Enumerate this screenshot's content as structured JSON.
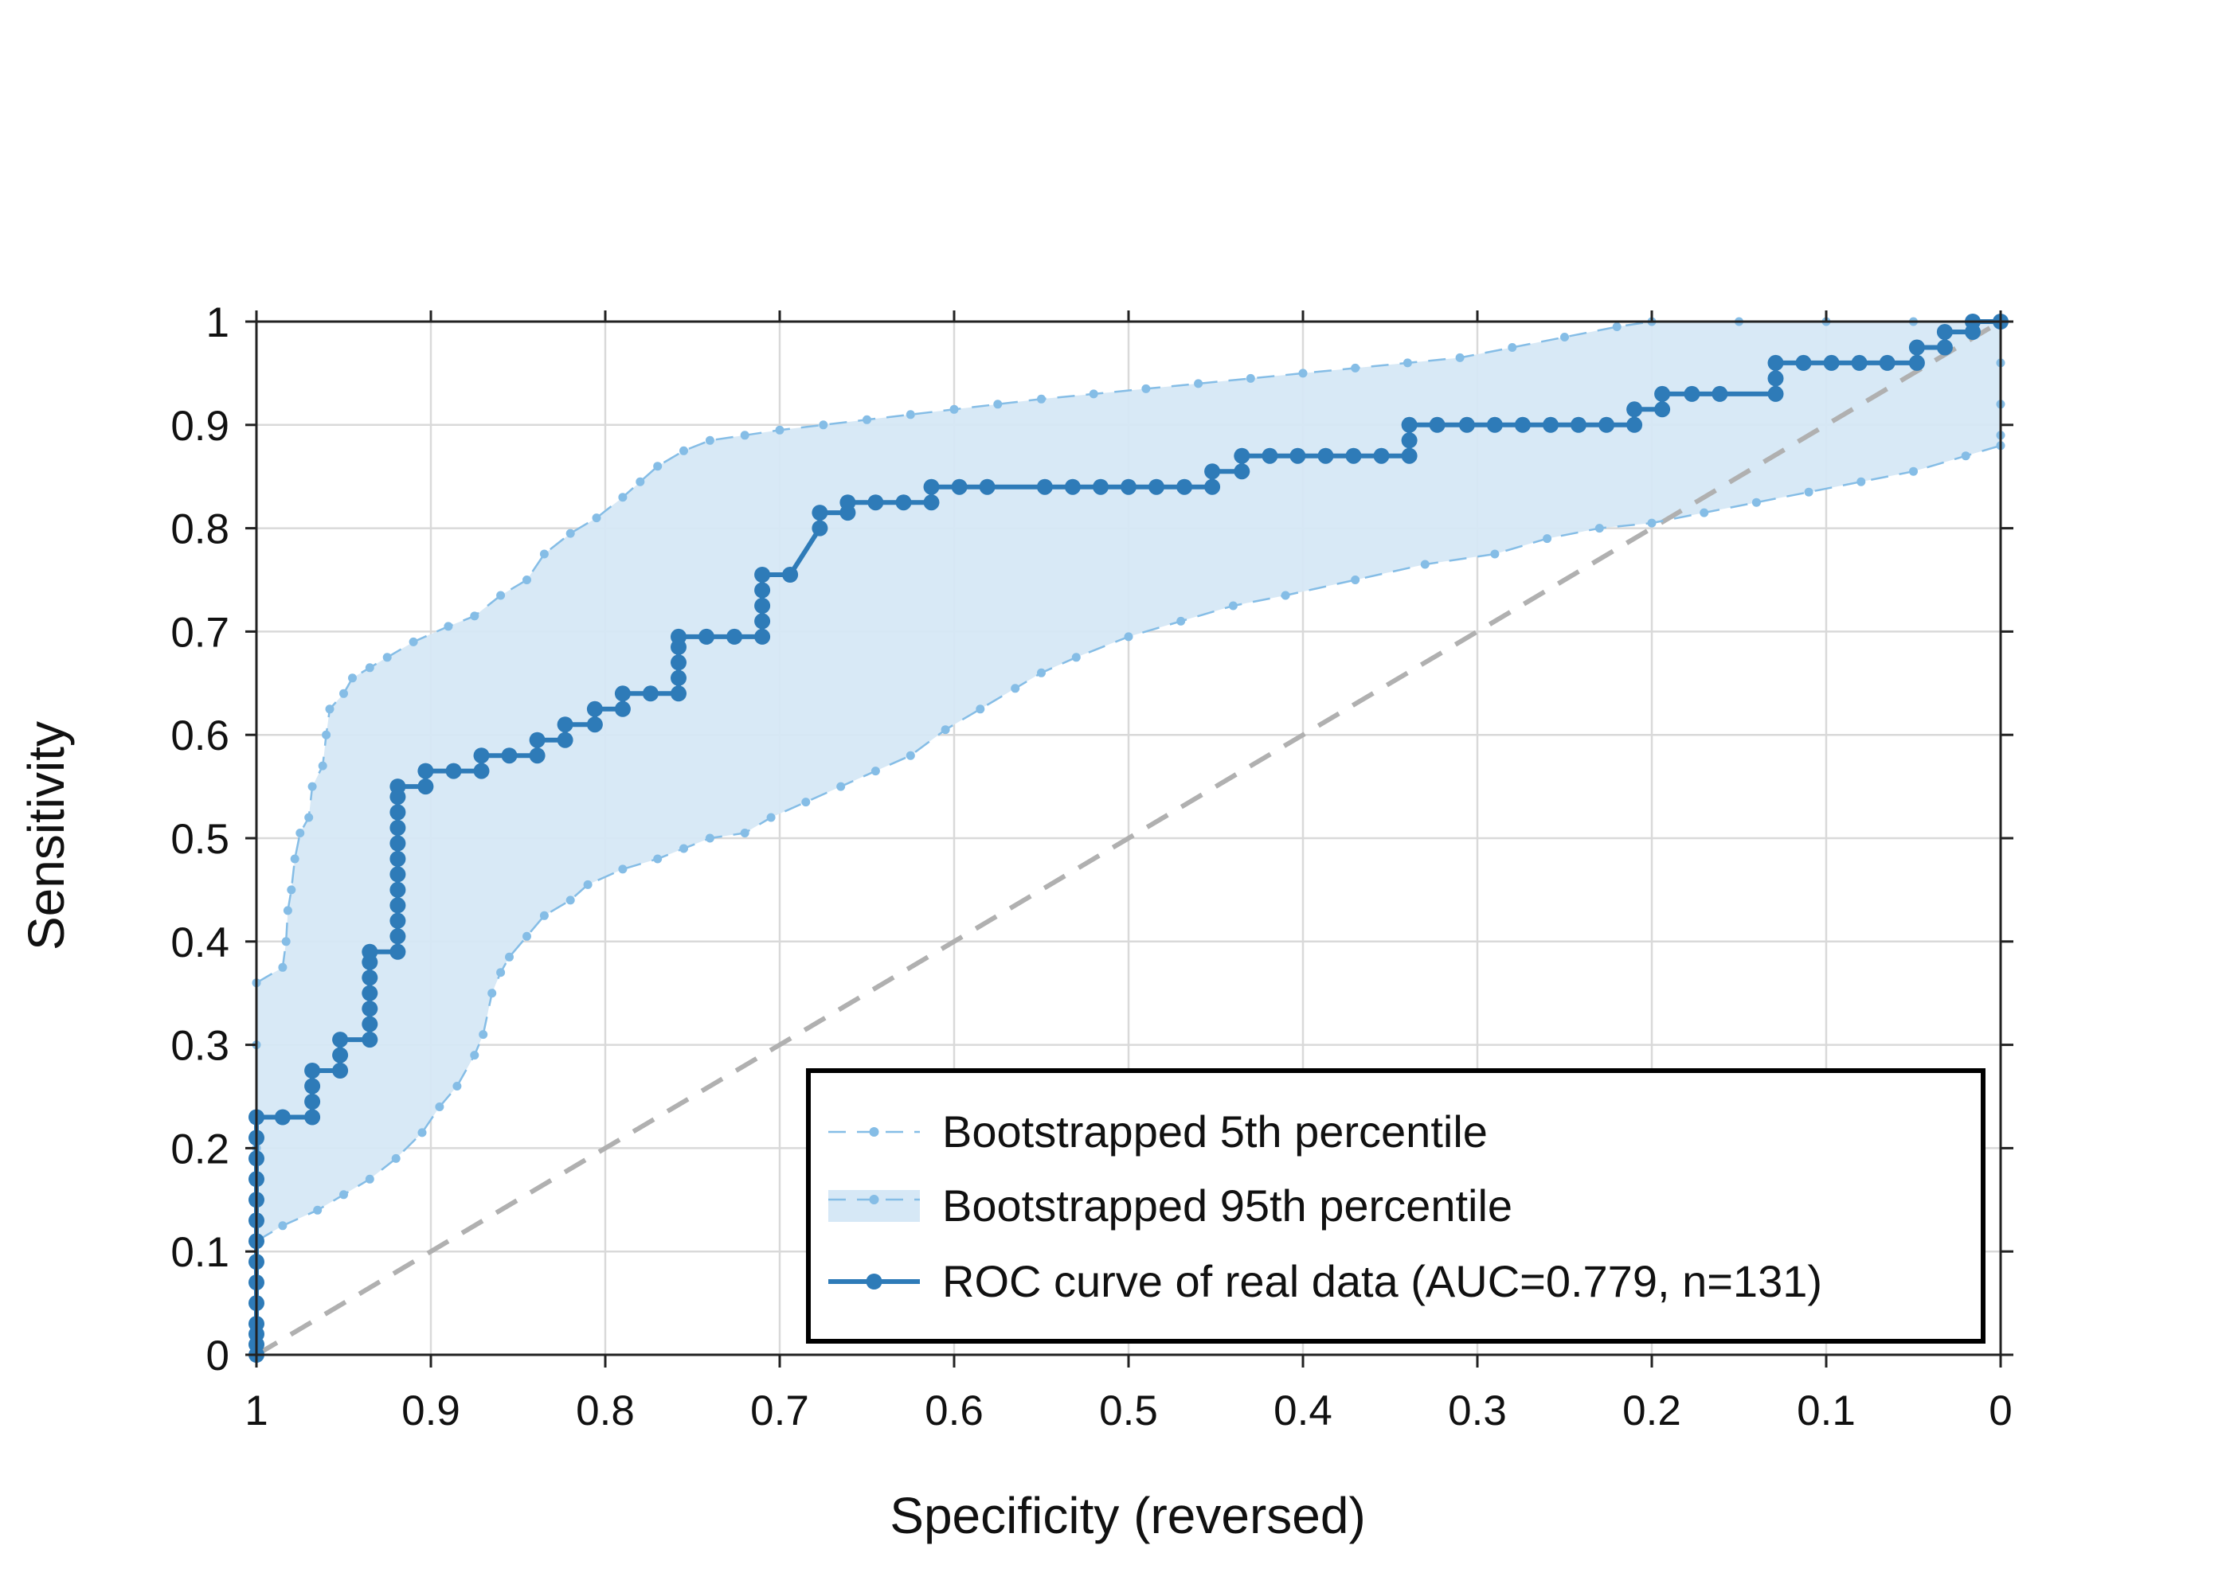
{
  "chart_data": {
    "type": "line",
    "title": "",
    "xlabel": "Specificity (reversed)",
    "ylabel": "Sensitivity",
    "xlim": [
      1,
      0
    ],
    "ylim": [
      0,
      1
    ],
    "x_reversed": true,
    "grid": true,
    "legend_placement": "bottom-right",
    "x_ticks": [
      "1",
      "0.9",
      "0.8",
      "0.7",
      "0.6",
      "0.5",
      "0.4",
      "0.3",
      "0.2",
      "0.1",
      "0"
    ],
    "y_ticks": [
      "0",
      "0.1",
      "0.2",
      "0.3",
      "0.4",
      "0.5",
      "0.6",
      "0.7",
      "0.8",
      "0.9",
      "1"
    ],
    "colors": {
      "roc": "#2e7bb8",
      "band_line": "#85bde6",
      "band_fill": "#d6e8f6",
      "diagonal": "#b0b0b0",
      "grid": "#d9d9d9"
    },
    "series": [
      {
        "name": "Bootstrapped 5th percentile",
        "points": [
          [
            1.0,
            0.0
          ],
          [
            1.0,
            0.11
          ],
          [
            0.985,
            0.125
          ],
          [
            0.965,
            0.14
          ],
          [
            0.95,
            0.155
          ],
          [
            0.935,
            0.17
          ],
          [
            0.92,
            0.19
          ],
          [
            0.905,
            0.215
          ],
          [
            0.895,
            0.24
          ],
          [
            0.885,
            0.26
          ],
          [
            0.875,
            0.29
          ],
          [
            0.87,
            0.31
          ],
          [
            0.865,
            0.35
          ],
          [
            0.86,
            0.37
          ],
          [
            0.855,
            0.385
          ],
          [
            0.845,
            0.405
          ],
          [
            0.835,
            0.425
          ],
          [
            0.82,
            0.44
          ],
          [
            0.81,
            0.455
          ],
          [
            0.79,
            0.47
          ],
          [
            0.77,
            0.48
          ],
          [
            0.755,
            0.49
          ],
          [
            0.74,
            0.5
          ],
          [
            0.72,
            0.505
          ],
          [
            0.705,
            0.52
          ],
          [
            0.685,
            0.535
          ],
          [
            0.665,
            0.55
          ],
          [
            0.645,
            0.565
          ],
          [
            0.625,
            0.58
          ],
          [
            0.605,
            0.605
          ],
          [
            0.585,
            0.625
          ],
          [
            0.565,
            0.645
          ],
          [
            0.55,
            0.66
          ],
          [
            0.53,
            0.675
          ],
          [
            0.5,
            0.695
          ],
          [
            0.47,
            0.71
          ],
          [
            0.44,
            0.725
          ],
          [
            0.41,
            0.735
          ],
          [
            0.37,
            0.75
          ],
          [
            0.33,
            0.765
          ],
          [
            0.29,
            0.775
          ],
          [
            0.26,
            0.79
          ],
          [
            0.23,
            0.8
          ],
          [
            0.2,
            0.805
          ],
          [
            0.17,
            0.815
          ],
          [
            0.14,
            0.825
          ],
          [
            0.11,
            0.835
          ],
          [
            0.08,
            0.845
          ],
          [
            0.05,
            0.855
          ],
          [
            0.02,
            0.87
          ],
          [
            0.0,
            0.88
          ],
          [
            0.0,
            0.89
          ],
          [
            0.0,
            0.92
          ],
          [
            0.0,
            0.96
          ],
          [
            0.0,
            1.0
          ]
        ]
      },
      {
        "name": "Bootstrapped 95th percentile",
        "points": [
          [
            1.0,
            0.0
          ],
          [
            1.0,
            0.2
          ],
          [
            1.0,
            0.3
          ],
          [
            1.0,
            0.36
          ],
          [
            0.985,
            0.375
          ],
          [
            0.983,
            0.4
          ],
          [
            0.982,
            0.43
          ],
          [
            0.98,
            0.45
          ],
          [
            0.978,
            0.48
          ],
          [
            0.975,
            0.505
          ],
          [
            0.97,
            0.52
          ],
          [
            0.968,
            0.55
          ],
          [
            0.962,
            0.57
          ],
          [
            0.96,
            0.6
          ],
          [
            0.958,
            0.625
          ],
          [
            0.95,
            0.64
          ],
          [
            0.945,
            0.655
          ],
          [
            0.935,
            0.665
          ],
          [
            0.925,
            0.675
          ],
          [
            0.91,
            0.69
          ],
          [
            0.89,
            0.705
          ],
          [
            0.875,
            0.715
          ],
          [
            0.86,
            0.735
          ],
          [
            0.845,
            0.75
          ],
          [
            0.835,
            0.775
          ],
          [
            0.82,
            0.795
          ],
          [
            0.805,
            0.81
          ],
          [
            0.79,
            0.83
          ],
          [
            0.78,
            0.845
          ],
          [
            0.77,
            0.86
          ],
          [
            0.755,
            0.875
          ],
          [
            0.74,
            0.885
          ],
          [
            0.72,
            0.89
          ],
          [
            0.7,
            0.895
          ],
          [
            0.675,
            0.9
          ],
          [
            0.65,
            0.905
          ],
          [
            0.625,
            0.91
          ],
          [
            0.6,
            0.915
          ],
          [
            0.575,
            0.92
          ],
          [
            0.55,
            0.925
          ],
          [
            0.52,
            0.93
          ],
          [
            0.49,
            0.935
          ],
          [
            0.46,
            0.94
          ],
          [
            0.43,
            0.945
          ],
          [
            0.4,
            0.95
          ],
          [
            0.37,
            0.955
          ],
          [
            0.34,
            0.96
          ],
          [
            0.31,
            0.965
          ],
          [
            0.28,
            0.975
          ],
          [
            0.25,
            0.985
          ],
          [
            0.22,
            0.995
          ],
          [
            0.2,
            1.0
          ],
          [
            0.15,
            1.0
          ],
          [
            0.1,
            1.0
          ],
          [
            0.05,
            1.0
          ],
          [
            0.0,
            1.0
          ]
        ]
      },
      {
        "name": "ROC curve of real data (AUC=0.779, n=131)",
        "points": [
          [
            1.0,
            0.0
          ],
          [
            1.0,
            0.01
          ],
          [
            1.0,
            0.02
          ],
          [
            1.0,
            0.03
          ],
          [
            1.0,
            0.05
          ],
          [
            1.0,
            0.07
          ],
          [
            1.0,
            0.09
          ],
          [
            1.0,
            0.11
          ],
          [
            1.0,
            0.13
          ],
          [
            1.0,
            0.15
          ],
          [
            1.0,
            0.17
          ],
          [
            1.0,
            0.19
          ],
          [
            1.0,
            0.21
          ],
          [
            1.0,
            0.23
          ],
          [
            0.985,
            0.23
          ],
          [
            0.968,
            0.23
          ],
          [
            0.968,
            0.245
          ],
          [
            0.968,
            0.26
          ],
          [
            0.968,
            0.275
          ],
          [
            0.952,
            0.275
          ],
          [
            0.952,
            0.29
          ],
          [
            0.952,
            0.305
          ],
          [
            0.935,
            0.305
          ],
          [
            0.935,
            0.32
          ],
          [
            0.935,
            0.335
          ],
          [
            0.935,
            0.35
          ],
          [
            0.935,
            0.365
          ],
          [
            0.935,
            0.38
          ],
          [
            0.935,
            0.39
          ],
          [
            0.919,
            0.39
          ],
          [
            0.919,
            0.405
          ],
          [
            0.919,
            0.42
          ],
          [
            0.919,
            0.435
          ],
          [
            0.919,
            0.45
          ],
          [
            0.919,
            0.465
          ],
          [
            0.919,
            0.48
          ],
          [
            0.919,
            0.495
          ],
          [
            0.919,
            0.51
          ],
          [
            0.919,
            0.525
          ],
          [
            0.919,
            0.54
          ],
          [
            0.919,
            0.55
          ],
          [
            0.903,
            0.55
          ],
          [
            0.903,
            0.565
          ],
          [
            0.887,
            0.565
          ],
          [
            0.871,
            0.565
          ],
          [
            0.871,
            0.58
          ],
          [
            0.855,
            0.58
          ],
          [
            0.839,
            0.58
          ],
          [
            0.839,
            0.595
          ],
          [
            0.823,
            0.595
          ],
          [
            0.823,
            0.61
          ],
          [
            0.806,
            0.61
          ],
          [
            0.806,
            0.625
          ],
          [
            0.79,
            0.625
          ],
          [
            0.79,
            0.64
          ],
          [
            0.774,
            0.64
          ],
          [
            0.758,
            0.64
          ],
          [
            0.758,
            0.655
          ],
          [
            0.758,
            0.67
          ],
          [
            0.758,
            0.685
          ],
          [
            0.758,
            0.695
          ],
          [
            0.742,
            0.695
          ],
          [
            0.726,
            0.695
          ],
          [
            0.71,
            0.695
          ],
          [
            0.71,
            0.71
          ],
          [
            0.71,
            0.725
          ],
          [
            0.71,
            0.74
          ],
          [
            0.71,
            0.755
          ],
          [
            0.694,
            0.755
          ],
          [
            0.677,
            0.8
          ],
          [
            0.677,
            0.815
          ],
          [
            0.661,
            0.815
          ],
          [
            0.661,
            0.825
          ],
          [
            0.645,
            0.825
          ],
          [
            0.629,
            0.825
          ],
          [
            0.613,
            0.825
          ],
          [
            0.613,
            0.84
          ],
          [
            0.597,
            0.84
          ],
          [
            0.581,
            0.84
          ],
          [
            0.548,
            0.84
          ],
          [
            0.532,
            0.84
          ],
          [
            0.516,
            0.84
          ],
          [
            0.5,
            0.84
          ],
          [
            0.484,
            0.84
          ],
          [
            0.468,
            0.84
          ],
          [
            0.452,
            0.84
          ],
          [
            0.452,
            0.855
          ],
          [
            0.435,
            0.855
          ],
          [
            0.435,
            0.87
          ],
          [
            0.419,
            0.87
          ],
          [
            0.403,
            0.87
          ],
          [
            0.387,
            0.87
          ],
          [
            0.371,
            0.87
          ],
          [
            0.355,
            0.87
          ],
          [
            0.339,
            0.87
          ],
          [
            0.339,
            0.885
          ],
          [
            0.339,
            0.9
          ],
          [
            0.323,
            0.9
          ],
          [
            0.306,
            0.9
          ],
          [
            0.29,
            0.9
          ],
          [
            0.274,
            0.9
          ],
          [
            0.258,
            0.9
          ],
          [
            0.242,
            0.9
          ],
          [
            0.226,
            0.9
          ],
          [
            0.21,
            0.9
          ],
          [
            0.21,
            0.915
          ],
          [
            0.194,
            0.915
          ],
          [
            0.194,
            0.93
          ],
          [
            0.177,
            0.93
          ],
          [
            0.161,
            0.93
          ],
          [
            0.129,
            0.93
          ],
          [
            0.129,
            0.945
          ],
          [
            0.129,
            0.96
          ],
          [
            0.113,
            0.96
          ],
          [
            0.097,
            0.96
          ],
          [
            0.081,
            0.96
          ],
          [
            0.065,
            0.96
          ],
          [
            0.048,
            0.96
          ],
          [
            0.048,
            0.975
          ],
          [
            0.032,
            0.975
          ],
          [
            0.032,
            0.99
          ],
          [
            0.016,
            0.99
          ],
          [
            0.016,
            1.0
          ],
          [
            0.0,
            1.0
          ]
        ]
      }
    ],
    "diagonal": [
      [
        1,
        0
      ],
      [
        0,
        1
      ]
    ]
  },
  "legend": {
    "items": [
      {
        "label": "Bootstrapped 5th percentile",
        "style": "dashed-dotted-line"
      },
      {
        "label": "Bootstrapped 95th percentile",
        "style": "filled-band"
      },
      {
        "label": "ROC curve of real data (AUC=0.779, n=131)",
        "style": "solid-dotted-line"
      }
    ]
  }
}
